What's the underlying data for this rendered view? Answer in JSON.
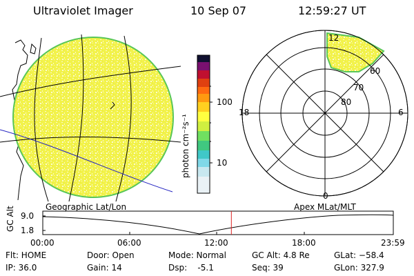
{
  "header": {
    "instrument": "Ultraviolet Imager",
    "date": "10 Sep 07",
    "time": "12:59:27 UT"
  },
  "colorbar": {
    "label": "photon cm⁻²s⁻¹",
    "ticks": [
      "100",
      "10"
    ],
    "scale": "log"
  },
  "panels": {
    "left_label": "Geographic Lat/Lon",
    "right_label": "Apex MLat/MLT"
  },
  "polar": {
    "mlt_labels": {
      "top": "12",
      "left": "18",
      "right": "6",
      "bottom": "0"
    },
    "lat_labels": [
      "60",
      "70",
      "80"
    ]
  },
  "altitude_plot": {
    "ylabel": "GC Alt",
    "y_ticks": [
      "9.0",
      "1.8"
    ],
    "x_ticks": [
      "00:00",
      "06:00",
      "12:00",
      "18:00",
      "23:59"
    ],
    "current_time_fraction": 0.538
  },
  "status": {
    "filter": "Flt: HOME",
    "ip": "IP: 36.0",
    "door": "Door: Open",
    "gain": "Gain: 14",
    "mode": "Mode: Normal",
    "dsp": "Dsp:    -5.1",
    "gc_alt": "GC Alt: 4.8 Re",
    "seq": "Seq: 39",
    "glat": "GLat: −58.4",
    "glon": "GLon: 327.9"
  },
  "colors": {
    "image_fill": "#f2f24a",
    "image_speckle": "#fbfbc8",
    "image_edge": "#58c658",
    "marker_line": "#dd2020",
    "graticule_blue": "#2020c0"
  }
}
